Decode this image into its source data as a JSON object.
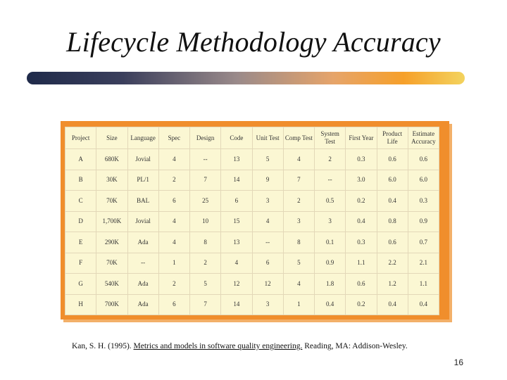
{
  "slide": {
    "title": "Lifecycle Methodology Accuracy",
    "page_number": "16"
  },
  "citation": {
    "authors_year": "Kan, S. H. (1995).",
    "book_title": "Metrics and models in software quality engineering.",
    "publisher": "Reading, MA: Addison-Wesley."
  },
  "table": {
    "headers": [
      "Project",
      "Size",
      "Language",
      "Spec",
      "Design",
      "Code",
      "Unit Test",
      "Comp Test",
      "System Test",
      "First Year",
      "Product Life",
      "Estimate Accuracy"
    ],
    "rows": [
      [
        "A",
        "680K",
        "Jovial",
        "4",
        "--",
        "13",
        "5",
        "4",
        "2",
        "0.3",
        "0.6",
        "0.6"
      ],
      [
        "B",
        "30K",
        "PL/1",
        "2",
        "7",
        "14",
        "9",
        "7",
        "--",
        "3.0",
        "6.0",
        "6.0"
      ],
      [
        "C",
        "70K",
        "BAL",
        "6",
        "25",
        "6",
        "3",
        "2",
        "0.5",
        "0.2",
        "0.4",
        "0.3"
      ],
      [
        "D",
        "1,700K",
        "Jovial",
        "4",
        "10",
        "15",
        "4",
        "3",
        "3",
        "0.4",
        "0.8",
        "0.9"
      ],
      [
        "E",
        "290K",
        "Ada",
        "4",
        "8",
        "13",
        "--",
        "8",
        "0.1",
        "0.3",
        "0.6",
        "0.7"
      ],
      [
        "F",
        "70K",
        "--",
        "1",
        "2",
        "4",
        "6",
        "5",
        "0.9",
        "1.1",
        "2.2",
        "2.1"
      ],
      [
        "G",
        "540K",
        "Ada",
        "2",
        "5",
        "12",
        "12",
        "4",
        "1.8",
        "0.6",
        "1.2",
        "1.1"
      ],
      [
        "H",
        "700K",
        "Ada",
        "6",
        "7",
        "14",
        "3",
        "1",
        "0.4",
        "0.2",
        "0.4",
        "0.4"
      ]
    ]
  },
  "colors": {
    "table_frame": "#f08e2c",
    "table_paper": "#fbf7d3"
  }
}
